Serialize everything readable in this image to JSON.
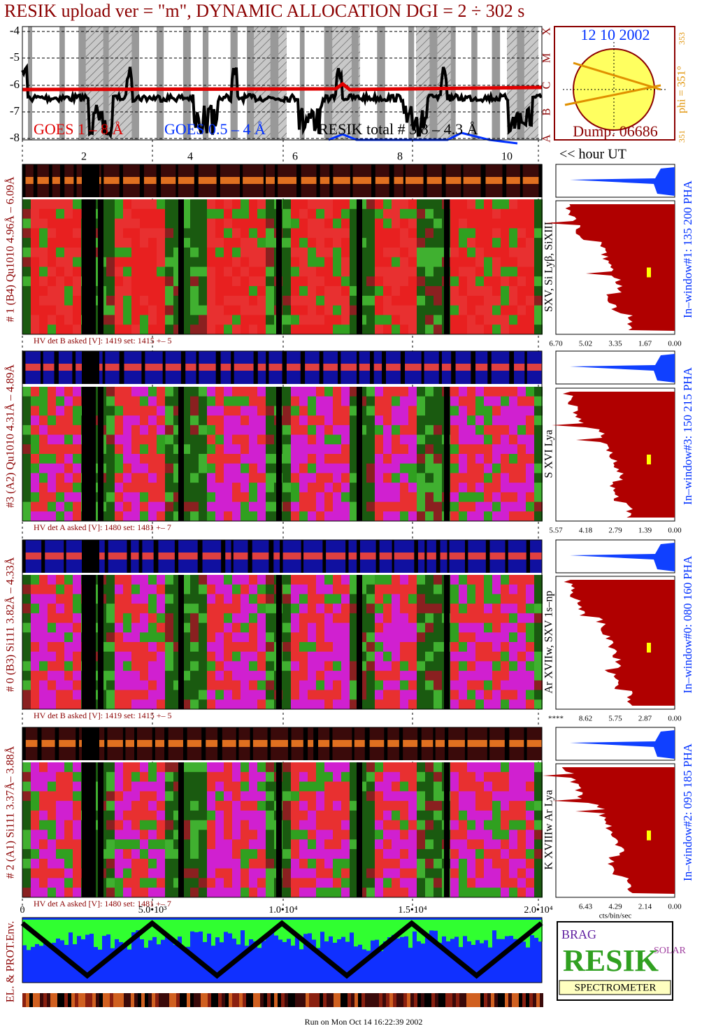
{
  "title": "RESIK upload ver = \"m\", DYNAMIC ALLOCATION  DGI =  2 ÷ 302 s",
  "goes": {
    "yticks": [
      "-4",
      "-5",
      "-6",
      "-7",
      "-8"
    ],
    "class_labels": [
      "X",
      "M",
      "C",
      "B",
      "A"
    ],
    "legend": [
      "GOES 1 – 8 Å",
      "GOES 0.5 – 4 Å",
      "RESIK total # 3.8 – 4.3 Å"
    ],
    "hour_ticks": [
      "2",
      "4",
      "6",
      "8",
      "10"
    ],
    "hour_label": "<< hour UT"
  },
  "sun": {
    "date": "12 10 2002",
    "phi": "phi = 351°",
    "phi_top": "353",
    "phi_bottom": "351",
    "dump": "Dump: 06686"
  },
  "detectors": [
    {
      "label": "# 1 (B4) Qu1010 4.96Å – 6.09Å",
      "lines": "SXV, Si Lyβ, SiXIII",
      "hv": "HV det B asked [V]:  1419 set:  1415 +–   5",
      "window": "In–window#1:  135 200 PHA",
      "pha_ticks": [
        "6.70",
        "5.02",
        "3.35",
        "1.67",
        "0.00"
      ]
    },
    {
      "label": "#3 (A2) Qu1010  4.31Å – 4.89Å",
      "lines": "S XVI Lya",
      "hv": "HV det A asked [V]:  1480 set:  1481 +–   7",
      "window": "In–window#3:  150 215 PHA",
      "pha_ticks": [
        "5.57",
        "4.18",
        "2.79",
        "1.39",
        "0.00"
      ]
    },
    {
      "label": "# 0 (B3) Si111  3.82Å – 4.33Å",
      "lines": "Ar XVIIw,  SXV 1s–np",
      "hv": "HV det B asked [V]:  1419 set:  1415 +–   5",
      "window": "In–window#0:  080 160 PHA",
      "pha_ticks": [
        "****",
        "8.62",
        "5.75",
        "2.87",
        "0.00"
      ]
    },
    {
      "label": "# 2 (A1) Si111  3.37Å– 3.88Å",
      "lines": "K XVIIIw  Ar Lya",
      "hv": "HV det A asked [V]:  1480 set:  1481 +–   7",
      "window": "In–window#2:  095 185 PHA",
      "pha_ticks": [
        "6.43",
        "4.29",
        "2.14",
        "0.00"
      ]
    }
  ],
  "pha_axis_label": "cts/bin/sec",
  "time_ticks": [
    "0",
    "5.0•10³",
    "1.0•10⁴",
    "1.5•10⁴",
    "2.0•10⁴"
  ],
  "env_label": "EL. & PROT.Env.",
  "logo": {
    "top": "BRAG",
    "middle": "RESIK",
    "side": "SOLAR",
    "bottom": "SPECTROMETER"
  },
  "footer": "Run on Mon Oct 14 16:22:39 2002"
}
